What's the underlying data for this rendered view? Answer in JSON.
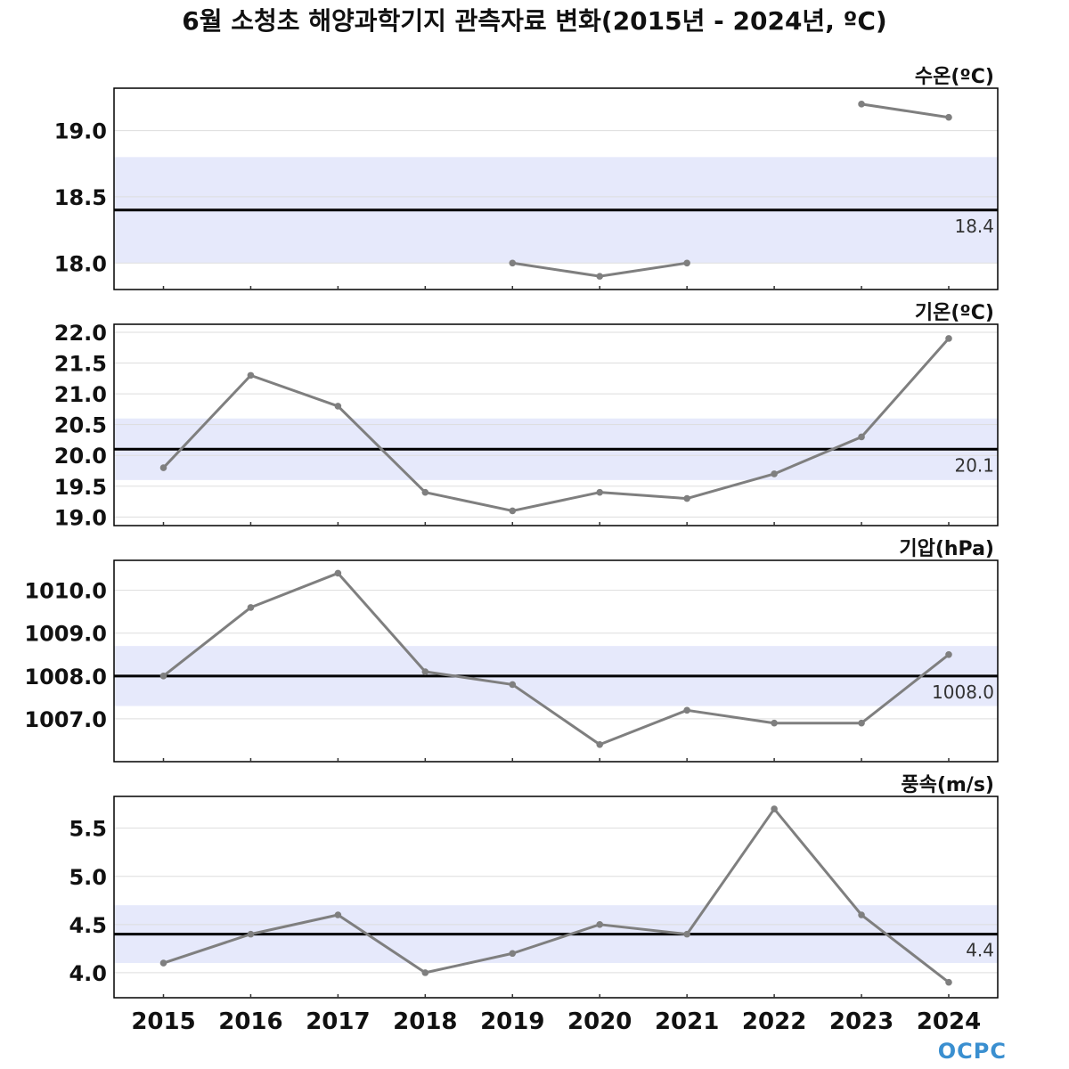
{
  "title": "6월 소청초 해양과학기지 관측자료 변화(2015년 - 2024년, ºC)",
  "logo": "OCPC",
  "colors": {
    "line": "#7f7f7f",
    "band": "#e6e9fb",
    "ref": "#000000",
    "grid": "#dddddd",
    "logo": "#3a8fd0"
  },
  "chart_data": [
    {
      "type": "line",
      "title": "수온(ºC)",
      "x": [
        "2015",
        "2016",
        "2017",
        "2018",
        "2019",
        "2020",
        "2021",
        "2022",
        "2023",
        "2024"
      ],
      "values": [
        null,
        null,
        null,
        null,
        18.0,
        17.9,
        18.0,
        null,
        19.2,
        19.1
      ],
      "yticks": [
        18.0,
        18.5,
        19.0
      ],
      "ytick_labels": [
        "18.0",
        "18.5",
        "19.0"
      ],
      "ylim": [
        17.8,
        19.32
      ],
      "reference": 18.4,
      "reference_label": "18.4",
      "band": [
        18.0,
        18.8
      ]
    },
    {
      "type": "line",
      "title": "기온(ºC)",
      "x": [
        "2015",
        "2016",
        "2017",
        "2018",
        "2019",
        "2020",
        "2021",
        "2022",
        "2023",
        "2024"
      ],
      "values": [
        19.8,
        21.3,
        20.8,
        19.4,
        19.1,
        19.4,
        19.3,
        19.7,
        20.3,
        21.9
      ],
      "yticks": [
        19.0,
        19.5,
        20.0,
        20.5,
        21.0,
        21.5,
        22.0
      ],
      "ytick_labels": [
        "19.0",
        "19.5",
        "20.0",
        "20.5",
        "21.0",
        "21.5",
        "22.0"
      ],
      "ylim": [
        18.86,
        22.13
      ],
      "reference": 20.1,
      "reference_label": "20.1",
      "band": [
        19.6,
        20.6
      ]
    },
    {
      "type": "line",
      "title": "기압(hPa)",
      "x": [
        "2015",
        "2016",
        "2017",
        "2018",
        "2019",
        "2020",
        "2021",
        "2022",
        "2023",
        "2024"
      ],
      "values": [
        1008.0,
        1009.6,
        1010.4,
        1008.1,
        1007.8,
        1006.4,
        1007.2,
        1006.9,
        1006.9,
        1008.5
      ],
      "yticks": [
        1007.0,
        1008.0,
        1009.0,
        1010.0
      ],
      "ytick_labels": [
        "1007.0",
        "1008.0",
        "1009.0",
        "1010.0"
      ],
      "ylim": [
        1006.0,
        1010.7
      ],
      "reference": 1008.0,
      "reference_label": "1008.0",
      "band": [
        1007.3,
        1008.7
      ]
    },
    {
      "type": "line",
      "title": "풍속(m/s)",
      "x": [
        "2015",
        "2016",
        "2017",
        "2018",
        "2019",
        "2020",
        "2021",
        "2022",
        "2023",
        "2024"
      ],
      "values": [
        4.1,
        4.4,
        4.6,
        4.0,
        4.2,
        4.5,
        4.4,
        5.7,
        4.6,
        3.9
      ],
      "yticks": [
        4.0,
        4.5,
        5.0,
        5.5
      ],
      "ytick_labels": [
        "4.0",
        "4.5",
        "5.0",
        "5.5"
      ],
      "ylim": [
        3.74,
        5.83
      ],
      "reference": 4.4,
      "reference_label": "4.4",
      "band": [
        4.1,
        4.7
      ]
    }
  ]
}
